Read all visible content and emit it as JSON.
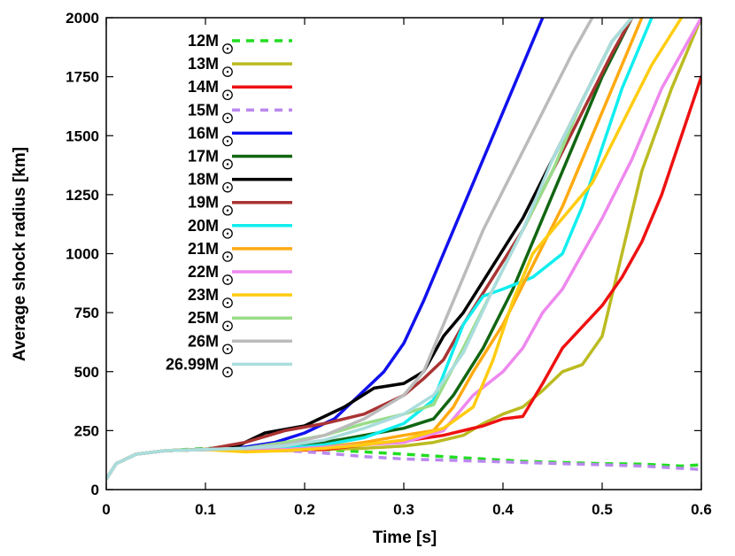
{
  "chart_data": {
    "type": "line",
    "title": "",
    "xlabel": "Time [s]",
    "ylabel": "Average shock radius [km]",
    "xlim": [
      0,
      0.6
    ],
    "ylim": [
      0,
      2000
    ],
    "xticks": [
      0,
      0.1,
      0.2,
      0.3,
      0.4,
      0.5,
      0.6
    ],
    "xtick_labels": [
      "0",
      "0.1",
      "0.2",
      "0.3",
      "0.4",
      "0.5",
      "0.6"
    ],
    "yticks": [
      0,
      250,
      500,
      750,
      1000,
      1250,
      1500,
      1750,
      2000
    ],
    "ytick_labels": [
      "0",
      "250",
      "500",
      "750",
      "1000",
      "1250",
      "1500",
      "1750",
      "2000"
    ],
    "grid": false,
    "legend_position": "top-left",
    "series": [
      {
        "name": "12 M",
        "label": "12",
        "unit": "M",
        "color": "#22dd22",
        "dashed": true,
        "x": [
          0,
          0.01,
          0.03,
          0.06,
          0.1,
          0.14,
          0.18,
          0.22,
          0.26,
          0.3,
          0.34,
          0.38,
          0.42,
          0.46,
          0.5,
          0.54,
          0.58,
          0.6
        ],
        "y": [
          45,
          110,
          150,
          165,
          175,
          178,
          175,
          170,
          160,
          150,
          140,
          130,
          120,
          115,
          110,
          108,
          100,
          105
        ]
      },
      {
        "name": "13 M",
        "label": "13",
        "unit": "M",
        "color": "#bbbb22",
        "dashed": false,
        "x": [
          0,
          0.01,
          0.03,
          0.06,
          0.1,
          0.14,
          0.18,
          0.22,
          0.26,
          0.3,
          0.33,
          0.36,
          0.38,
          0.4,
          0.42,
          0.44,
          0.46,
          0.48,
          0.5,
          0.52,
          0.54,
          0.57,
          0.6
        ],
        "y": [
          45,
          110,
          150,
          165,
          172,
          172,
          170,
          170,
          175,
          185,
          200,
          230,
          280,
          320,
          350,
          420,
          500,
          530,
          650,
          1000,
          1350,
          1700,
          2000
        ]
      },
      {
        "name": "14 M",
        "label": "14",
        "unit": "M",
        "color": "#ee1111",
        "dashed": false,
        "x": [
          0,
          0.01,
          0.03,
          0.06,
          0.1,
          0.14,
          0.18,
          0.22,
          0.26,
          0.3,
          0.34,
          0.38,
          0.4,
          0.42,
          0.44,
          0.46,
          0.48,
          0.5,
          0.52,
          0.54,
          0.56,
          0.58,
          0.6
        ],
        "y": [
          45,
          110,
          150,
          165,
          170,
          168,
          165,
          170,
          190,
          205,
          230,
          270,
          300,
          310,
          450,
          600,
          690,
          780,
          900,
          1050,
          1250,
          1500,
          1750
        ]
      },
      {
        "name": "15 M",
        "label": "15",
        "unit": "M",
        "color": "#bb88ee",
        "dashed": true,
        "x": [
          0,
          0.01,
          0.03,
          0.06,
          0.1,
          0.14,
          0.18,
          0.22,
          0.26,
          0.3,
          0.34,
          0.38,
          0.42,
          0.46,
          0.5,
          0.54,
          0.58,
          0.6
        ],
        "y": [
          45,
          110,
          150,
          165,
          172,
          175,
          165,
          155,
          140,
          130,
          125,
          120,
          115,
          110,
          105,
          100,
          90,
          85
        ]
      },
      {
        "name": "16 M",
        "label": "16",
        "unit": "M",
        "color": "#1111ee",
        "dashed": false,
        "x": [
          0,
          0.01,
          0.03,
          0.06,
          0.1,
          0.14,
          0.17,
          0.2,
          0.23,
          0.26,
          0.28,
          0.3,
          0.32,
          0.34,
          0.36,
          0.38,
          0.4,
          0.42,
          0.44
        ],
        "y": [
          45,
          110,
          150,
          165,
          170,
          180,
          200,
          240,
          300,
          420,
          500,
          620,
          800,
          1000,
          1200,
          1400,
          1600,
          1800,
          2000
        ]
      },
      {
        "name": "17 M",
        "label": "17",
        "unit": "M",
        "color": "#116611",
        "dashed": false,
        "x": [
          0,
          0.01,
          0.03,
          0.06,
          0.1,
          0.14,
          0.18,
          0.22,
          0.26,
          0.3,
          0.33,
          0.35,
          0.38,
          0.41,
          0.44,
          0.47,
          0.5,
          0.53
        ],
        "y": [
          45,
          110,
          150,
          165,
          170,
          175,
          180,
          200,
          230,
          260,
          300,
          400,
          600,
          850,
          1150,
          1450,
          1750,
          2000
        ]
      },
      {
        "name": "18 M",
        "label": "18",
        "unit": "M",
        "color": "#000000",
        "dashed": false,
        "x": [
          0,
          0.01,
          0.03,
          0.06,
          0.1,
          0.13,
          0.16,
          0.2,
          0.24,
          0.27,
          0.3,
          0.32,
          0.34,
          0.36,
          0.39,
          0.42,
          0.45,
          0.48,
          0.51,
          0.53
        ],
        "y": [
          45,
          110,
          150,
          165,
          170,
          180,
          240,
          270,
          350,
          430,
          450,
          500,
          650,
          750,
          950,
          1150,
          1400,
          1650,
          1900,
          2000
        ]
      },
      {
        "name": "19 M",
        "label": "19",
        "unit": "M",
        "color": "#aa3333",
        "dashed": false,
        "x": [
          0,
          0.01,
          0.03,
          0.06,
          0.1,
          0.14,
          0.18,
          0.22,
          0.26,
          0.3,
          0.32,
          0.34,
          0.36,
          0.39,
          0.42,
          0.45,
          0.48,
          0.51,
          0.53
        ],
        "y": [
          45,
          110,
          150,
          165,
          170,
          200,
          250,
          280,
          320,
          400,
          470,
          550,
          700,
          900,
          1100,
          1350,
          1600,
          1850,
          2000
        ]
      },
      {
        "name": "20 M",
        "label": "20",
        "unit": "M",
        "color": "#11eeee",
        "dashed": false,
        "x": [
          0,
          0.01,
          0.03,
          0.06,
          0.1,
          0.14,
          0.18,
          0.22,
          0.26,
          0.3,
          0.33,
          0.36,
          0.38,
          0.4,
          0.43,
          0.46,
          0.48,
          0.5,
          0.52,
          0.55
        ],
        "y": [
          45,
          110,
          150,
          165,
          170,
          170,
          175,
          190,
          220,
          280,
          380,
          700,
          820,
          850,
          900,
          1000,
          1200,
          1450,
          1700,
          2000
        ]
      },
      {
        "name": "21 M",
        "label": "21",
        "unit": "M",
        "color": "#ffaa11",
        "dashed": false,
        "x": [
          0,
          0.01,
          0.03,
          0.06,
          0.1,
          0.14,
          0.18,
          0.22,
          0.26,
          0.3,
          0.33,
          0.35,
          0.37,
          0.4,
          0.43,
          0.46,
          0.49,
          0.52,
          0.54
        ],
        "y": [
          45,
          110,
          150,
          165,
          170,
          165,
          170,
          180,
          200,
          230,
          250,
          350,
          500,
          700,
          950,
          1200,
          1500,
          1800,
          2000
        ]
      },
      {
        "name": "22 M",
        "label": "22",
        "unit": "M",
        "color": "#ee88ee",
        "dashed": false,
        "x": [
          0,
          0.01,
          0.03,
          0.06,
          0.1,
          0.14,
          0.18,
          0.22,
          0.26,
          0.3,
          0.34,
          0.37,
          0.4,
          0.42,
          0.44,
          0.46,
          0.48,
          0.5,
          0.53,
          0.56,
          0.6
        ],
        "y": [
          45,
          110,
          150,
          165,
          170,
          165,
          170,
          180,
          190,
          200,
          250,
          400,
          500,
          600,
          750,
          850,
          1000,
          1150,
          1400,
          1700,
          2000
        ]
      },
      {
        "name": "23 M",
        "label": "23",
        "unit": "M",
        "color": "#ffcc11",
        "dashed": false,
        "x": [
          0,
          0.01,
          0.03,
          0.06,
          0.1,
          0.14,
          0.18,
          0.22,
          0.26,
          0.3,
          0.34,
          0.37,
          0.39,
          0.41,
          0.43,
          0.46,
          0.49,
          0.52,
          0.55,
          0.58
        ],
        "y": [
          45,
          110,
          150,
          165,
          170,
          160,
          165,
          175,
          190,
          210,
          260,
          350,
          550,
          800,
          1000,
          1150,
          1300,
          1550,
          1800,
          2000
        ]
      },
      {
        "name": "25 M",
        "label": "25",
        "unit": "M",
        "color": "#99dd88",
        "dashed": false,
        "x": [
          0,
          0.01,
          0.03,
          0.06,
          0.1,
          0.14,
          0.18,
          0.22,
          0.26,
          0.3,
          0.33,
          0.36,
          0.39,
          0.42,
          0.45,
          0.48,
          0.51,
          0.53
        ],
        "y": [
          45,
          110,
          150,
          165,
          170,
          175,
          200,
          230,
          280,
          320,
          360,
          600,
          850,
          1100,
          1350,
          1650,
          1900,
          2000
        ]
      },
      {
        "name": "26 M",
        "label": "26",
        "unit": "M",
        "color": "#bbbbbb",
        "dashed": false,
        "x": [
          0,
          0.01,
          0.03,
          0.06,
          0.1,
          0.14,
          0.18,
          0.22,
          0.26,
          0.3,
          0.32,
          0.35,
          0.38,
          0.41,
          0.44,
          0.47,
          0.49
        ],
        "y": [
          45,
          110,
          150,
          165,
          170,
          175,
          190,
          230,
          300,
          400,
          500,
          800,
          1100,
          1350,
          1600,
          1850,
          2000
        ]
      },
      {
        "name": "26.99 M",
        "label": "26.99",
        "unit": "M",
        "color": "#aadddd",
        "dashed": false,
        "x": [
          0,
          0.01,
          0.03,
          0.06,
          0.1,
          0.14,
          0.18,
          0.22,
          0.26,
          0.3,
          0.33,
          0.36,
          0.39,
          0.42,
          0.45,
          0.48,
          0.51,
          0.53
        ],
        "y": [
          45,
          110,
          150,
          165,
          170,
          175,
          185,
          210,
          260,
          320,
          400,
          580,
          850,
          1100,
          1400,
          1650,
          1900,
          2000
        ]
      }
    ]
  }
}
